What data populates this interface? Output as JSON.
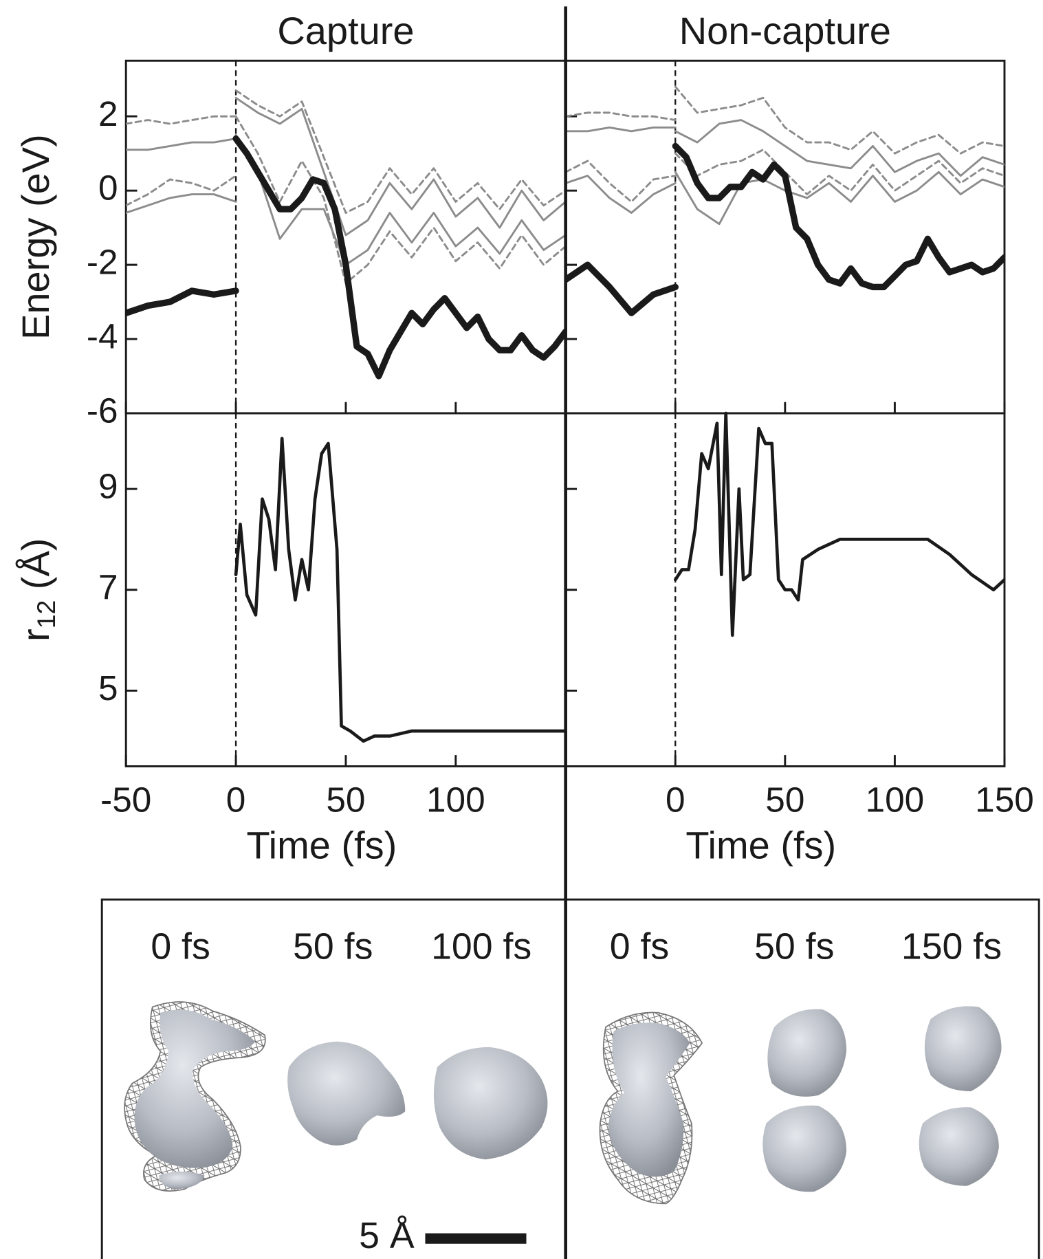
{
  "chart_data": [
    {
      "type": "line",
      "title": "Capture",
      "ylabel": "Energy (eV)",
      "xlim": [
        -50,
        150
      ],
      "ylim": [
        -6,
        3.5
      ],
      "xticks": [
        -50,
        0,
        50,
        100
      ],
      "yticks": [
        -6,
        -4,
        -2,
        0,
        2
      ],
      "show_xtick_labels": false,
      "show_ytick_labels": true,
      "vline": 0,
      "series": [
        {
          "color": "#1a1a1a",
          "width": 8,
          "dashed": false,
          "x": [
            -50,
            -40,
            -30,
            -20,
            -10,
            0
          ],
          "values": [
            -3.3,
            -3.1,
            -3.0,
            -2.7,
            -2.8,
            -2.7
          ]
        },
        {
          "color": "#8c8c8c",
          "width": 2.5,
          "dashed": false,
          "x": [
            -50,
            -40,
            -30,
            -20,
            -10,
            0
          ],
          "values": [
            1.1,
            1.1,
            1.2,
            1.3,
            1.3,
            1.4
          ]
        },
        {
          "color": "#8c8c8c",
          "width": 2.5,
          "dashed": true,
          "x": [
            -50,
            -40,
            -30,
            -20,
            -10,
            0
          ],
          "values": [
            1.8,
            1.9,
            1.8,
            1.9,
            2.0,
            2.0
          ]
        },
        {
          "color": "#8c8c8c",
          "width": 2.5,
          "dashed": false,
          "x": [
            -50,
            -40,
            -30,
            -20,
            -10,
            0
          ],
          "values": [
            -0.6,
            -0.4,
            -0.2,
            -0.1,
            -0.1,
            -0.3
          ]
        },
        {
          "color": "#8c8c8c",
          "width": 2.5,
          "dashed": true,
          "x": [
            -50,
            -40,
            -30,
            -20,
            -10,
            0
          ],
          "values": [
            -0.4,
            -0.1,
            0.3,
            0.2,
            0.0,
            0.4
          ]
        },
        {
          "color": "#8c8c8c",
          "width": 2.5,
          "dashed": false,
          "x": [
            0,
            10,
            20,
            30,
            40,
            50,
            60,
            70,
            80,
            90,
            100,
            110,
            120,
            130,
            140,
            150
          ],
          "values": [
            2.5,
            2.1,
            1.8,
            2.2,
            0.5,
            -1.2,
            -0.8,
            0.2,
            -0.5,
            0.3,
            -0.7,
            -0.2,
            -1.0,
            0.0,
            -0.8,
            -0.3
          ]
        },
        {
          "color": "#8c8c8c",
          "width": 2.5,
          "dashed": true,
          "x": [
            0,
            10,
            20,
            30,
            40,
            50,
            60,
            70,
            80,
            90,
            100,
            110,
            120,
            130,
            140,
            150
          ],
          "values": [
            2.7,
            2.3,
            2.0,
            2.4,
            0.9,
            -0.6,
            -0.3,
            0.6,
            -0.1,
            0.6,
            -0.3,
            0.2,
            -0.5,
            0.3,
            -0.4,
            0.0
          ]
        },
        {
          "color": "#8c8c8c",
          "width": 2.5,
          "dashed": false,
          "x": [
            0,
            10,
            20,
            30,
            40,
            50,
            60,
            70,
            80,
            90,
            100,
            110,
            120,
            130,
            140,
            150
          ],
          "values": [
            1.5,
            0.5,
            -1.3,
            -0.5,
            -0.5,
            -2.0,
            -1.6,
            -0.6,
            -1.4,
            -0.6,
            -1.5,
            -1.0,
            -1.7,
            -0.8,
            -1.6,
            -1.2
          ]
        },
        {
          "color": "#8c8c8c",
          "width": 2.5,
          "dashed": true,
          "x": [
            0,
            10,
            20,
            30,
            40,
            50,
            60,
            70,
            80,
            90,
            100,
            110,
            120,
            130,
            140,
            150
          ],
          "values": [
            2.0,
            1.0,
            -0.3,
            0.8,
            -0.2,
            -2.5,
            -2.0,
            -1.1,
            -1.8,
            -1.0,
            -1.9,
            -1.4,
            -2.1,
            -1.2,
            -2.0,
            -1.5
          ]
        },
        {
          "color": "#1a1a1a",
          "width": 8,
          "dashed": false,
          "x": [
            0,
            5,
            10,
            15,
            20,
            25,
            30,
            35,
            40,
            45,
            50,
            55,
            60,
            65,
            70,
            75,
            80,
            85,
            90,
            95,
            100,
            105,
            110,
            115,
            120,
            125,
            130,
            135,
            140,
            145,
            150
          ],
          "values": [
            1.4,
            1.0,
            0.5,
            0.0,
            -0.5,
            -0.5,
            -0.2,
            0.3,
            0.2,
            -0.5,
            -2.0,
            -4.2,
            -4.4,
            -5.0,
            -4.3,
            -3.8,
            -3.3,
            -3.6,
            -3.2,
            -2.9,
            -3.3,
            -3.7,
            -3.4,
            -4.0,
            -4.3,
            -4.3,
            -3.9,
            -4.3,
            -4.5,
            -4.2,
            -3.8
          ]
        }
      ]
    },
    {
      "type": "line",
      "ylabel": [
        "r",
        "12",
        " (Å)"
      ],
      "xlabel": "Time (fs)",
      "xlim": [
        -50,
        150
      ],
      "ylim": [
        3.5,
        10.5
      ],
      "xticks": [
        -50,
        0,
        50,
        100
      ],
      "yticks": [
        5,
        7,
        9
      ],
      "show_xtick_labels": true,
      "show_ytick_labels": true,
      "vline": 0,
      "series": [
        {
          "color": "#1a1a1a",
          "width": 4,
          "dashed": false,
          "x": [
            0,
            2,
            5,
            9,
            12,
            15,
            18,
            21,
            24,
            27,
            30,
            33,
            36,
            39,
            42,
            46,
            48,
            52,
            58,
            63,
            70,
            80,
            90,
            100,
            110,
            120,
            130,
            140,
            150
          ],
          "values": [
            7.3,
            8.3,
            6.9,
            6.5,
            8.8,
            8.4,
            7.4,
            10.0,
            7.8,
            6.8,
            7.6,
            7.0,
            8.8,
            9.7,
            9.9,
            7.8,
            4.3,
            4.2,
            4.0,
            4.1,
            4.1,
            4.2,
            4.2,
            4.2,
            4.2,
            4.2,
            4.2,
            4.2,
            4.2
          ]
        }
      ]
    },
    {
      "type": "line",
      "title": "Non-capture",
      "xlim": [
        -50,
        150
      ],
      "ylim": [
        -6,
        3.5
      ],
      "xticks": [
        0,
        50,
        100,
        150
      ],
      "yticks": [
        -6,
        -4,
        -2,
        0,
        2
      ],
      "show_xtick_labels": false,
      "show_ytick_labels": false,
      "vline": 0,
      "series": [
        {
          "color": "#1a1a1a",
          "width": 8,
          "dashed": false,
          "x": [
            -50,
            -40,
            -30,
            -20,
            -10,
            0
          ],
          "values": [
            -2.4,
            -2.0,
            -2.6,
            -3.3,
            -2.8,
            -2.6
          ]
        },
        {
          "color": "#8c8c8c",
          "width": 2.5,
          "dashed": false,
          "x": [
            -50,
            -40,
            -30,
            -20,
            -10,
            0
          ],
          "values": [
            1.6,
            1.6,
            1.7,
            1.6,
            1.7,
            1.7
          ]
        },
        {
          "color": "#8c8c8c",
          "width": 2.5,
          "dashed": true,
          "x": [
            -50,
            -40,
            -30,
            -20,
            -10,
            0
          ],
          "values": [
            2.0,
            2.1,
            2.1,
            2.0,
            2.0,
            1.9
          ]
        },
        {
          "color": "#8c8c8c",
          "width": 2.5,
          "dashed": false,
          "x": [
            -50,
            -40,
            -30,
            -20,
            -10,
            0
          ],
          "values": [
            0.2,
            0.4,
            -0.2,
            -0.6,
            -0.1,
            0.2
          ]
        },
        {
          "color": "#8c8c8c",
          "width": 2.5,
          "dashed": true,
          "x": [
            -50,
            -40,
            -30,
            -20,
            -10,
            0
          ],
          "values": [
            0.5,
            0.8,
            0.2,
            -0.3,
            0.3,
            0.4
          ]
        },
        {
          "color": "#8c8c8c",
          "width": 2.5,
          "dashed": false,
          "x": [
            0,
            10,
            20,
            30,
            40,
            50,
            60,
            70,
            80,
            90,
            100,
            110,
            120,
            130,
            140,
            150
          ],
          "values": [
            1.6,
            1.3,
            1.8,
            1.9,
            1.6,
            1.2,
            0.8,
            0.7,
            0.6,
            1.2,
            0.5,
            0.8,
            1.0,
            0.4,
            0.9,
            0.7
          ]
        },
        {
          "color": "#8c8c8c",
          "width": 2.5,
          "dashed": true,
          "x": [
            0,
            10,
            20,
            30,
            40,
            50,
            60,
            70,
            80,
            90,
            100,
            110,
            120,
            130,
            140,
            150
          ],
          "values": [
            2.8,
            2.1,
            2.2,
            2.3,
            2.5,
            1.7,
            1.3,
            1.3,
            1.1,
            1.6,
            1.0,
            1.3,
            1.5,
            1.0,
            1.3,
            1.2
          ]
        },
        {
          "color": "#8c8c8c",
          "width": 2.5,
          "dashed": false,
          "x": [
            0,
            10,
            20,
            30,
            40,
            50,
            60,
            70,
            80,
            90,
            100,
            110,
            120,
            130,
            140,
            150
          ],
          "values": [
            0.5,
            -0.5,
            -0.9,
            0.2,
            0.3,
            0.0,
            -0.2,
            0.2,
            -0.3,
            0.4,
            -0.3,
            0.0,
            0.5,
            -0.1,
            0.3,
            0.1
          ]
        },
        {
          "color": "#8c8c8c",
          "width": 2.5,
          "dashed": true,
          "x": [
            0,
            10,
            20,
            30,
            40,
            50,
            60,
            70,
            80,
            90,
            100,
            110,
            120,
            130,
            140,
            150
          ],
          "values": [
            1.0,
            0.4,
            0.7,
            0.8,
            1.1,
            0.5,
            -0.1,
            0.4,
            0.0,
            0.7,
            0.0,
            0.4,
            0.8,
            0.2,
            0.6,
            0.4
          ]
        },
        {
          "color": "#1a1a1a",
          "width": 8,
          "dashed": false,
          "x": [
            0,
            5,
            10,
            15,
            20,
            25,
            30,
            35,
            40,
            45,
            50,
            55,
            60,
            65,
            70,
            75,
            80,
            85,
            90,
            95,
            100,
            105,
            110,
            115,
            120,
            125,
            130,
            135,
            140,
            145,
            150
          ],
          "values": [
            1.2,
            0.9,
            0.2,
            -0.2,
            -0.2,
            0.1,
            0.1,
            0.5,
            0.3,
            0.7,
            0.4,
            -1.0,
            -1.3,
            -2.0,
            -2.4,
            -2.5,
            -2.1,
            -2.5,
            -2.6,
            -2.6,
            -2.3,
            -2.0,
            -1.9,
            -1.3,
            -1.8,
            -2.2,
            -2.1,
            -2.0,
            -2.2,
            -2.1,
            -1.8
          ]
        }
      ]
    },
    {
      "type": "line",
      "xlabel": "Time (fs)",
      "xlim": [
        -50,
        150
      ],
      "ylim": [
        3.5,
        10.5
      ],
      "xticks": [
        0,
        50,
        100,
        150
      ],
      "yticks": [
        5,
        7,
        9
      ],
      "show_xtick_labels": true,
      "show_ytick_labels": false,
      "vline": 0,
      "series": [
        {
          "color": "#1a1a1a",
          "width": 4,
          "dashed": false,
          "x": [
            0,
            3,
            6,
            9,
            12,
            15,
            19,
            21,
            23,
            26,
            29,
            31,
            34,
            38,
            41,
            44,
            47,
            50,
            53,
            56,
            58,
            65,
            75,
            85,
            95,
            105,
            115,
            125,
            135,
            145,
            150
          ],
          "values": [
            7.2,
            7.4,
            7.4,
            8.2,
            9.7,
            9.4,
            10.3,
            7.3,
            10.5,
            6.1,
            9.0,
            7.2,
            7.3,
            10.2,
            9.9,
            9.9,
            7.2,
            7.0,
            7.0,
            6.8,
            7.6,
            7.8,
            8.0,
            8.0,
            8.0,
            8.0,
            8.0,
            7.7,
            7.3,
            7.0,
            7.2
          ]
        }
      ]
    }
  ],
  "snapshots": {
    "capture": [
      "0 fs",
      "50 fs",
      "100 fs"
    ],
    "non_capture": [
      "0 fs",
      "50 fs",
      "150 fs"
    ],
    "scale_bar": "5 Å"
  }
}
